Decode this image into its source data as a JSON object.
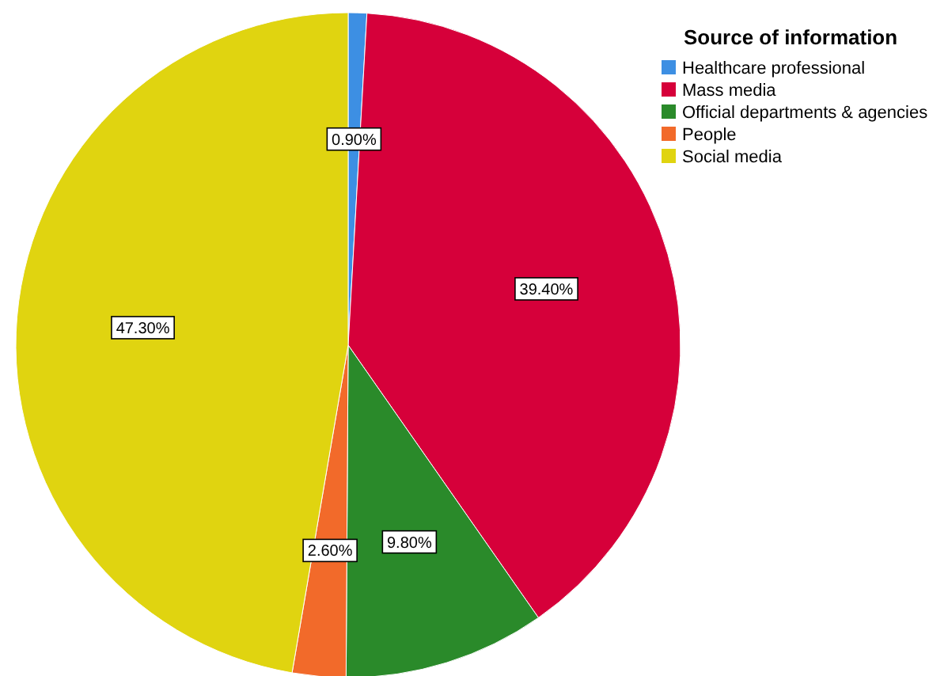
{
  "chart_data": {
    "type": "pie",
    "legend_title": "Source of information",
    "legend": "top right",
    "data_labels": true,
    "categories": [
      "Healthcare professional",
      "Mass media",
      "Official departments & agencies",
      "People",
      "Social media"
    ],
    "values": [
      0.9,
      39.4,
      9.8,
      2.6,
      47.3
    ],
    "value_labels": [
      "0.90%",
      "39.40%",
      "9.80%",
      "2.60%",
      "47.30%"
    ],
    "colors": [
      "#3d8fe3",
      "#d6003a",
      "#2a8a2a",
      "#f26a2a",
      "#e0d410"
    ]
  }
}
